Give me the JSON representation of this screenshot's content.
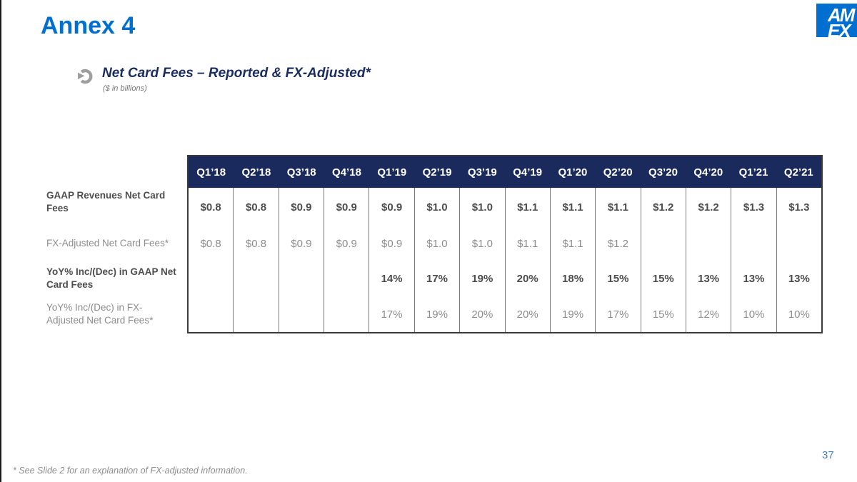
{
  "slide": {
    "title": "Annex 4",
    "page_number": "37",
    "footnote": "* See Slide 2 for an explanation of FX-adjusted information."
  },
  "heading": {
    "text": "Net Card Fees – Reported & FX-Adjusted*",
    "subtext": "($ in billions)"
  },
  "logo": {
    "name": "American Express logo (cropped)",
    "line1": "AM",
    "line2": "EX"
  },
  "colors": {
    "accent_blue": "#006FCF",
    "heading_navy": "#1B2D5E",
    "table_header_navy": "#1B2A5C",
    "table_border": "#3A3A3A",
    "column_separator": "#7A7A7A",
    "value_bold_gray": "#4D4D4D",
    "value_light_gray": "#8C8C8C",
    "page_number_blue": "#4A7EBE"
  },
  "table": {
    "columns": [
      "Q1’18",
      "Q2’18",
      "Q3’18",
      "Q4’18",
      "Q1’19",
      "Q2’19",
      "Q3’19",
      "Q4’19",
      "Q1’20",
      "Q2’20",
      "Q3’20",
      "Q4’20",
      "Q1’21",
      "Q2’21"
    ],
    "rows": [
      {
        "label": "GAAP Revenues Net Card Fees",
        "emphasis": true,
        "values": [
          "$0.8",
          "$0.8",
          "$0.9",
          "$0.9",
          "$0.9",
          "$1.0",
          "$1.0",
          "$1.1",
          "$1.1",
          "$1.1",
          "$1.2",
          "$1.2",
          "$1.3",
          "$1.3"
        ]
      },
      {
        "label": "FX-Adjusted Net Card Fees*",
        "emphasis": false,
        "values": [
          "$0.8",
          "$0.8",
          "$0.9",
          "$0.9",
          "$0.9",
          "$1.0",
          "$1.0",
          "$1.1",
          "$1.1",
          "$1.2",
          "",
          "",
          "",
          ""
        ]
      },
      {
        "label": "YoY% Inc/(Dec) in GAAP Net Card Fees",
        "emphasis": true,
        "values": [
          "",
          "",
          "",
          "",
          "14%",
          "17%",
          "19%",
          "20%",
          "18%",
          "15%",
          "15%",
          "13%",
          "13%",
          "13%"
        ]
      },
      {
        "label": "YoY% Inc/(Dec) in FX-Adjusted Net Card Fees*",
        "emphasis": false,
        "values": [
          "",
          "",
          "",
          "",
          "17%",
          "19%",
          "20%",
          "20%",
          "19%",
          "17%",
          "15%",
          "12%",
          "10%",
          "10%"
        ]
      }
    ]
  }
}
